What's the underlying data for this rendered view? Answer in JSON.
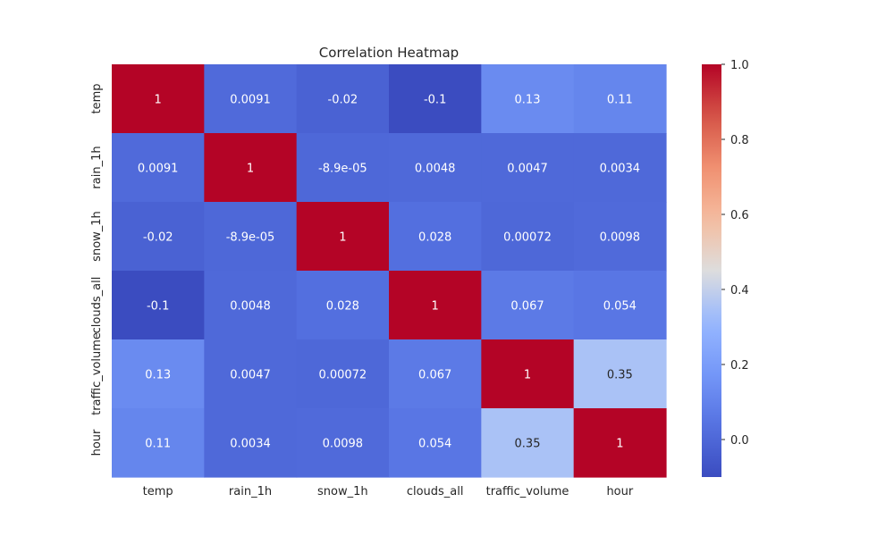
{
  "chart_data": {
    "type": "heatmap",
    "title": "Correlation Heatmap",
    "xlabel": "",
    "ylabel": "",
    "x_categories": [
      "temp",
      "rain_1h",
      "snow_1h",
      "clouds_all",
      "traffic_volume",
      "hour"
    ],
    "y_categories": [
      "temp",
      "rain_1h",
      "snow_1h",
      "clouds_all",
      "traffic_volume",
      "hour"
    ],
    "values": [
      [
        1,
        0.0091,
        -0.02,
        -0.1,
        0.13,
        0.11
      ],
      [
        0.0091,
        1,
        -8.9e-05,
        0.0048,
        0.0047,
        0.0034
      ],
      [
        -0.02,
        -8.9e-05,
        1,
        0.028,
        0.00072,
        0.0098
      ],
      [
        -0.1,
        0.0048,
        0.028,
        1,
        0.067,
        0.054
      ],
      [
        0.13,
        0.0047,
        0.00072,
        0.067,
        1,
        0.35
      ],
      [
        0.11,
        0.0034,
        0.0098,
        0.054,
        0.35,
        1
      ]
    ],
    "annotations": [
      [
        "1",
        "0.0091",
        "-0.02",
        "-0.1",
        "0.13",
        "0.11"
      ],
      [
        "0.0091",
        "1",
        "-8.9e-05",
        "0.0048",
        "0.0047",
        "0.0034"
      ],
      [
        "-0.02",
        "-8.9e-05",
        "1",
        "0.028",
        "0.00072",
        "0.0098"
      ],
      [
        "-0.1",
        "0.0048",
        "0.028",
        "1",
        "0.067",
        "0.054"
      ],
      [
        "0.13",
        "0.0047",
        "0.00072",
        "0.067",
        "1",
        "0.35"
      ],
      [
        "0.11",
        "0.0034",
        "0.0098",
        "0.054",
        "0.35",
        "1"
      ]
    ],
    "colormap": "coolwarm",
    "vmin": -0.1,
    "vmax": 1.0,
    "colorbar_ticks": [
      0.0,
      0.2,
      0.4,
      0.6,
      0.8,
      1.0
    ],
    "colorbar_tick_labels": [
      "0.0",
      "0.2",
      "0.4",
      "0.6",
      "0.8",
      "1.0"
    ],
    "grid": false,
    "colorbar_position": "right"
  }
}
